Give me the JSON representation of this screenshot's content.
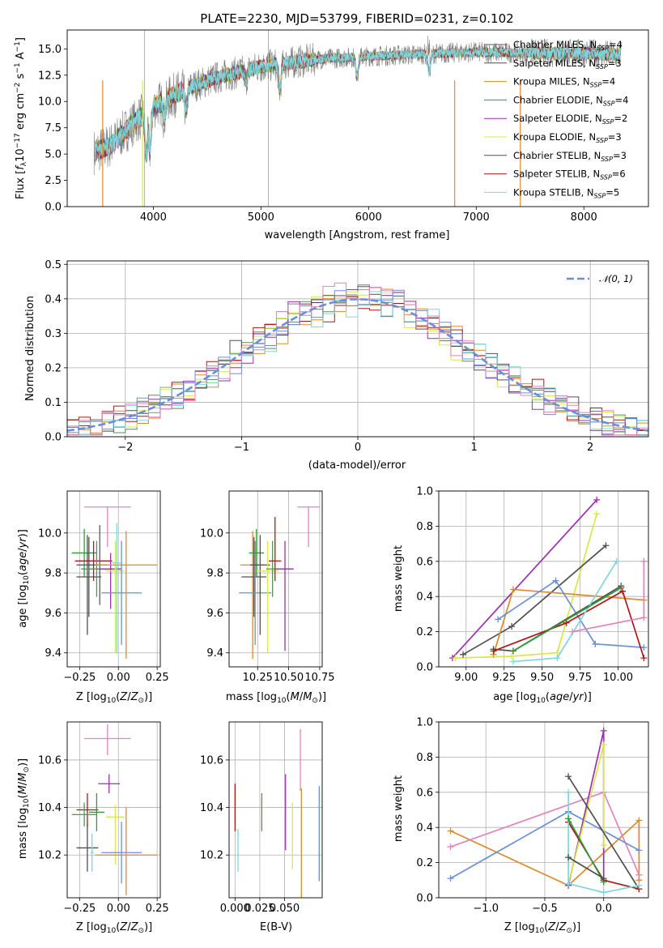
{
  "colors": {
    "s1": "#5a5a5a",
    "s2": "#dd8a2a",
    "s3": "#2f9a3a",
    "s4": "#9a2fb0",
    "s5": "#d6e84a",
    "s6": "#505050",
    "s7": "#b01818",
    "s8": "#7fd6dc",
    "blue": "#6a8fd8",
    "pink": "#e084bd",
    "green": "#5a8f5a",
    "gray": "#808080"
  },
  "chart_data": [
    {
      "type": "line",
      "title": "PLATE=2230, MJD=53799, FIBERID=0231, z=0.102",
      "xlabel": "wavelength [Angstrom, rest frame]",
      "ylabel": "Flux [fλ10⁻¹⁷ erg cm⁻² s⁻¹ A⁻¹]",
      "xlim": [
        3200,
        8600
      ],
      "ylim": [
        0,
        16.8
      ],
      "xticks": [
        4000,
        5000,
        6000,
        7000,
        8000
      ],
      "yticks": [
        0.0,
        2.5,
        5.0,
        7.5,
        10.0,
        12.5,
        15.0
      ],
      "legend_position": "top-right",
      "series": [
        {
          "name": "Chabrier MILES, N_SSP=4",
          "color": "#5a5a5a"
        },
        {
          "name": "Salpeter MILES, N_SSP=3",
          "color": "#505050"
        },
        {
          "name": "Kroupa MILES, N_SSP=4",
          "color": "#dd8a2a"
        },
        {
          "name": "Chabrier ELODIE, N_SSP=4",
          "color": "#2f9a3a"
        },
        {
          "name": "Salpeter ELODIE, N_SSP=2",
          "color": "#9a2fb0"
        },
        {
          "name": "Kroupa ELODIE, N_SSP=3",
          "color": "#d6e84a"
        },
        {
          "name": "Chabrier STELIB, N_SSP=3",
          "color": "#505050"
        },
        {
          "name": "Salpeter STELIB, N_SSP=6",
          "color": "#b01818"
        },
        {
          "name": "Kroupa STELIB, N_SSP=5",
          "color": "#7fd6dc"
        }
      ],
      "legend_labels": [
        {
          "pre": "Chabrier MILES, N",
          "sub": "SSP",
          "post": "=4"
        },
        {
          "pre": "Salpeter MILES, N",
          "sub": "SSP",
          "post": "=3"
        },
        {
          "pre": "Kroupa MILES, N",
          "sub": "SSP",
          "post": "=4"
        },
        {
          "pre": "Chabrier ELODIE, N",
          "sub": "SSP",
          "post": "=4"
        },
        {
          "pre": "Salpeter ELODIE, N",
          "sub": "SSP",
          "post": "=2"
        },
        {
          "pre": "Kroupa ELODIE, N",
          "sub": "SSP",
          "post": "=3"
        },
        {
          "pre": "Chabrier STELIB, N",
          "sub": "SSP",
          "post": "=3"
        },
        {
          "pre": "Salpeter STELIB, N",
          "sub": "SSP",
          "post": "=6"
        },
        {
          "pre": "Kroupa STELIB, N",
          "sub": "SSP",
          "post": "=5"
        }
      ],
      "trend": [
        [
          3450,
          5.2
        ],
        [
          3600,
          5.8
        ],
        [
          3800,
          7.8
        ],
        [
          4000,
          9.5
        ],
        [
          4300,
          11.2
        ],
        [
          4600,
          12.3
        ],
        [
          5000,
          13.3
        ],
        [
          5500,
          14.0
        ],
        [
          6000,
          14.3
        ],
        [
          6500,
          14.5
        ],
        [
          7000,
          14.7
        ],
        [
          7500,
          14.6
        ],
        [
          8000,
          14.6
        ],
        [
          8350,
          14.4
        ]
      ],
      "absorption_features": [
        [
          3934,
          5.0
        ],
        [
          3969,
          5.5
        ],
        [
          4102,
          8.5
        ],
        [
          4304,
          9.0
        ],
        [
          4861,
          12.0
        ],
        [
          5175,
          11.0
        ],
        [
          5893,
          12.5
        ],
        [
          6563,
          12.8
        ]
      ]
    },
    {
      "type": "line",
      "xlabel": "(data-model)/error",
      "ylabel": "Normed distribution",
      "xlim": [
        -2.5,
        2.5
      ],
      "ylim": [
        0,
        0.51
      ],
      "xticks": [
        -2,
        -1,
        0,
        1,
        2
      ],
      "yticks": [
        0.0,
        0.1,
        0.2,
        0.3,
        0.4,
        0.5
      ],
      "legend_position": "top-right",
      "legend_label": "𝒩(0, 1)",
      "reference_curve": {
        "name": "N(0,1)",
        "mean": 0,
        "sigma": 1,
        "color": "#6a8fd8"
      },
      "histogram_bin_width": 0.1
    },
    {
      "type": "scatter",
      "xlabel": "Z [log10(Z/Z⊙)]",
      "ylabel": "age [log10(age/yr)]",
      "xlim": [
        -0.33,
        0.27
      ],
      "ylim": [
        9.33,
        10.21
      ],
      "xticks": [
        -0.25,
        0.0,
        0.25
      ],
      "yticks": [
        9.4,
        9.6,
        9.8,
        10.0
      ],
      "errorbars": [
        {
          "x": -0.22,
          "y": 9.9,
          "xerr": 0.08,
          "yerr_lo": 0.12,
          "yerr_hi": 0.12,
          "color": "#2f9a3a"
        },
        {
          "x": -0.2,
          "y": 9.84,
          "xerr": 0.07,
          "yerr_lo": 0.35,
          "yerr_hi": 0.15,
          "color": "#505050"
        },
        {
          "x": -0.19,
          "y": 9.78,
          "xerr": 0.08,
          "yerr_lo": 0.2,
          "yerr_hi": 0.2,
          "color": "#505050"
        },
        {
          "x": -0.16,
          "y": 9.86,
          "xerr": 0.12,
          "yerr_lo": 0.1,
          "yerr_hi": 0.1,
          "color": "#b01818"
        },
        {
          "x": -0.14,
          "y": 9.82,
          "xerr": 0.1,
          "yerr_lo": 0.14,
          "yerr_hi": 0.14,
          "color": "#5a8f5a"
        },
        {
          "x": -0.12,
          "y": 9.84,
          "xerr": 0.05,
          "yerr_lo": 0.2,
          "yerr_hi": 0.2,
          "color": "#5a5a5a"
        },
        {
          "x": -0.07,
          "y": 10.13,
          "xerr": 0.15,
          "yerr_lo": 0.2,
          "yerr_hi": 0.0,
          "color": "#e084bd"
        },
        {
          "x": -0.05,
          "y": 9.82,
          "xerr": 0.07,
          "yerr_lo": 0.2,
          "yerr_hi": 0.08,
          "color": "#9a2fb0"
        },
        {
          "x": -0.02,
          "y": 9.81,
          "xerr": 0.06,
          "yerr_lo": 0.41,
          "yerr_hi": 0.15,
          "color": "#d6e84a"
        },
        {
          "x": 0.02,
          "y": 9.7,
          "xerr": 0.13,
          "yerr_lo": 0.26,
          "yerr_hi": 0.26,
          "color": "#6a8fd8"
        },
        {
          "x": 0.05,
          "y": 9.84,
          "xerr": 0.2,
          "yerr_lo": 0.47,
          "yerr_hi": 0.17,
          "color": "#dd8a2a"
        },
        {
          "x": -0.01,
          "y": 9.85,
          "xerr": 0.03,
          "yerr_lo": 0.45,
          "yerr_hi": 0.2,
          "color": "#7fd6dc"
        }
      ]
    },
    {
      "type": "scatter",
      "xlabel": "mass [log10(M/M⊙)]",
      "xlim": [
        10.02,
        10.77
      ],
      "ylim": [
        9.33,
        10.21
      ],
      "xticks": [
        10.25,
        10.5,
        10.75
      ],
      "yticks": [
        9.4,
        9.6,
        9.8,
        10.0
      ],
      "errorbars": [
        {
          "x": 10.21,
          "y": 9.84,
          "xerr": 0.1,
          "yerr_lo": 0.47,
          "yerr_hi": 0.17,
          "color": "#dd8a2a"
        },
        {
          "x": 10.22,
          "y": 9.78,
          "xerr": 0.1,
          "yerr_lo": 0.2,
          "yerr_hi": 0.2,
          "color": "#505050"
        },
        {
          "x": 10.23,
          "y": 9.7,
          "xerr": 0.13,
          "yerr_lo": 0.26,
          "yerr_hi": 0.26,
          "color": "#6a8fd8"
        },
        {
          "x": 10.24,
          "y": 9.9,
          "xerr": 0.06,
          "yerr_lo": 0.12,
          "yerr_hi": 0.12,
          "color": "#2f9a3a"
        },
        {
          "x": 10.27,
          "y": 9.84,
          "xerr": 0.08,
          "yerr_lo": 0.35,
          "yerr_hi": 0.15,
          "color": "#505050"
        },
        {
          "x": 10.33,
          "y": 9.81,
          "xerr": 0.09,
          "yerr_lo": 0.41,
          "yerr_hi": 0.15,
          "color": "#d6e84a"
        },
        {
          "x": 10.37,
          "y": 9.82,
          "xerr": 0.05,
          "yerr_lo": 0.14,
          "yerr_hi": 0.14,
          "color": "#5a8f5a"
        },
        {
          "x": 10.39,
          "y": 9.86,
          "xerr": 0.05,
          "yerr_lo": 0.1,
          "yerr_hi": 0.22,
          "color": "#b01818"
        },
        {
          "x": 10.47,
          "y": 9.82,
          "xerr": 0.07,
          "yerr_lo": 0.41,
          "yerr_hi": 0.14,
          "color": "#9a2fb0"
        },
        {
          "x": 10.66,
          "y": 10.13,
          "xerr": 0.09,
          "yerr_lo": 0.2,
          "yerr_hi": 0.0,
          "color": "#e084bd"
        }
      ]
    },
    {
      "type": "line",
      "xlabel": "age  [log10(age/yr)]",
      "ylabel": "mass weight",
      "xlim": [
        8.82,
        10.2
      ],
      "ylim": [
        0,
        1.0
      ],
      "xticks": [
        9.0,
        9.25,
        9.5,
        9.75,
        10.0
      ],
      "yticks": [
        0.0,
        0.2,
        0.4,
        0.6,
        0.8,
        1.0
      ],
      "series": [
        {
          "color": "#9a2fb0",
          "x": [
            8.91,
            9.86
          ],
          "y": [
            0.05,
            0.95
          ]
        },
        {
          "color": "#d6e84a",
          "x": [
            8.93,
            9.3,
            9.6,
            9.86
          ],
          "y": [
            0.05,
            0.06,
            0.08,
            0.87
          ]
        },
        {
          "color": "#505050",
          "x": [
            8.98,
            9.3,
            9.92
          ],
          "y": [
            0.07,
            0.23,
            0.69
          ]
        },
        {
          "color": "#dd8a2a",
          "x": [
            9.18,
            9.31,
            10.17
          ],
          "y": [
            0.07,
            0.44,
            0.38
          ]
        },
        {
          "color": "#6a8fd8",
          "x": [
            9.21,
            9.59,
            9.85,
            10.17
          ],
          "y": [
            0.27,
            0.49,
            0.13,
            0.11
          ]
        },
        {
          "color": "#505050",
          "x": [
            9.18,
            9.31,
            10.02
          ],
          "y": [
            0.1,
            0.09,
            0.46
          ]
        },
        {
          "color": "#b01818",
          "x": [
            9.18,
            9.66,
            10.03,
            10.17
          ],
          "y": [
            0.09,
            0.25,
            0.43,
            0.05
          ]
        },
        {
          "color": "#7fd6dc",
          "x": [
            9.31,
            9.6,
            9.99
          ],
          "y": [
            0.03,
            0.05,
            0.6
          ]
        },
        {
          "color": "#2f9a3a",
          "x": [
            9.31,
            10.02
          ],
          "y": [
            0.09,
            0.45
          ]
        },
        {
          "color": "#e084bd",
          "x": [
            9.7,
            10.17,
            10.17
          ],
          "y": [
            0.2,
            0.28,
            0.6
          ]
        }
      ]
    },
    {
      "type": "scatter",
      "xlabel": "Z [log10(Z/Z⊙)]",
      "ylabel": "mass [log10(M/M⊙)]",
      "xlim": [
        -0.33,
        0.27
      ],
      "ylim": [
        10.02,
        10.76
      ],
      "xticks": [
        -0.25,
        0.0,
        0.25
      ],
      "yticks": [
        10.2,
        10.4,
        10.6
      ],
      "errorbars": [
        {
          "x": -0.2,
          "y": 10.23,
          "xerr": 0.07,
          "yerr_lo": 0.1,
          "yerr_hi": 0.1,
          "color": "#505050"
        },
        {
          "x": -0.2,
          "y": 10.39,
          "xerr": 0.07,
          "yerr_lo": 0.07,
          "yerr_hi": 0.07,
          "color": "#b01818"
        },
        {
          "x": -0.22,
          "y": 10.37,
          "xerr": 0.08,
          "yerr_lo": 0.05,
          "yerr_hi": 0.05,
          "color": "#5a8f5a"
        },
        {
          "x": -0.14,
          "y": 10.38,
          "xerr": 0.05,
          "yerr_lo": 0.08,
          "yerr_hi": 0.08,
          "color": "#2f9a3a"
        },
        {
          "x": -0.06,
          "y": 10.5,
          "xerr": 0.07,
          "yerr_lo": 0.04,
          "yerr_hi": 0.04,
          "color": "#9a2fb0"
        },
        {
          "x": -0.07,
          "y": 10.69,
          "xerr": 0.15,
          "yerr_lo": 0.07,
          "yerr_hi": 0.06,
          "color": "#e084bd"
        },
        {
          "x": -0.02,
          "y": 10.36,
          "xerr": 0.06,
          "yerr_lo": 0.2,
          "yerr_hi": 0.05,
          "color": "#d6e84a"
        },
        {
          "x": 0.02,
          "y": 10.21,
          "xerr": 0.13,
          "yerr_lo": 0.13,
          "yerr_hi": 0.13,
          "color": "#6a8fd8"
        },
        {
          "x": 0.05,
          "y": 10.2,
          "xerr": 0.2,
          "yerr_lo": 0.17,
          "yerr_hi": 0.2,
          "color": "#dd8a2a"
        },
        {
          "x": -0.17,
          "y": 10.21,
          "xerr": 0.01,
          "yerr_lo": 0.08,
          "yerr_hi": 0.08,
          "color": "#7fd6dc"
        }
      ]
    },
    {
      "type": "scatter",
      "xlabel": "E(B-V)",
      "xlim": [
        -0.006,
        0.088
      ],
      "ylim": [
        10.02,
        10.76
      ],
      "xticks": [
        0.0,
        0.025,
        0.05
      ],
      "yticks": [
        10.2,
        10.4,
        10.6
      ],
      "errorbars": [
        {
          "x": 0.0,
          "y": 10.4,
          "yerr": 0.1,
          "color": "#b01818"
        },
        {
          "x": 0.003,
          "y": 10.22,
          "yerr": 0.09,
          "color": "#7fd6dc"
        },
        {
          "x": 0.027,
          "y": 10.38,
          "yerr": 0.08,
          "color": "#5a8f5a"
        },
        {
          "x": 0.051,
          "y": 10.38,
          "yerr": 0.16,
          "color": "#9a2fb0"
        },
        {
          "x": 0.058,
          "y": 10.28,
          "yerr": 0.14,
          "color": "#d6e84a"
        },
        {
          "x": 0.066,
          "y": 10.6,
          "yerr": 0.13,
          "color": "#e084bd"
        },
        {
          "x": 0.067,
          "y": 10.25,
          "yerr": 0.23,
          "color": "#dd8a2a"
        },
        {
          "x": 0.085,
          "y": 10.29,
          "yerr": 0.2,
          "color": "#6a8fd8"
        }
      ]
    },
    {
      "type": "line",
      "xlabel": "Z [log10(Z/Z⊙)]",
      "ylabel": "mass weight",
      "xlim": [
        -1.4,
        0.38
      ],
      "ylim": [
        0,
        1.0
      ],
      "xticks": [
        -1.0,
        -0.5,
        0.0
      ],
      "yticks": [
        0.0,
        0.2,
        0.4,
        0.6,
        0.8,
        1.0
      ],
      "series": [
        {
          "color": "#dd8a2a",
          "x": [
            -1.3,
            -0.3,
            0.3,
            0.3
          ],
          "y": [
            0.38,
            0.07,
            0.44,
            0.1
          ]
        },
        {
          "color": "#e084bd",
          "x": [
            -1.3,
            0.0,
            0.3
          ],
          "y": [
            0.29,
            0.6,
            0.13
          ]
        },
        {
          "color": "#6a8fd8",
          "x": [
            -1.3,
            -0.3,
            0.3
          ],
          "y": [
            0.11,
            0.49,
            0.27
          ]
        },
        {
          "color": "#9a2fb0",
          "x": [
            -0.3,
            0.0,
            0.0
          ],
          "y": [
            0.07,
            0.95,
            0.1
          ]
        },
        {
          "color": "#d6e84a",
          "x": [
            -0.3,
            0.0,
            0.0
          ],
          "y": [
            0.08,
            0.87,
            0.3
          ]
        },
        {
          "color": "#505050",
          "x": [
            -0.3,
            0.3
          ],
          "y": [
            0.69,
            0.05
          ]
        },
        {
          "color": "#b01818",
          "x": [
            -0.3,
            0.0,
            0.3
          ],
          "y": [
            0.43,
            0.1,
            0.05
          ]
        },
        {
          "color": "#7fd6dc",
          "x": [
            -0.3,
            -0.3,
            0.0,
            0.3
          ],
          "y": [
            0.6,
            0.08,
            0.03,
            0.07
          ]
        },
        {
          "color": "#2f9a3a",
          "x": [
            -0.3,
            0.0
          ],
          "y": [
            0.45,
            0.09
          ]
        },
        {
          "color": "#505050",
          "x": [
            -0.3,
            0.0
          ],
          "y": [
            0.23,
            0.11
          ]
        }
      ]
    }
  ]
}
